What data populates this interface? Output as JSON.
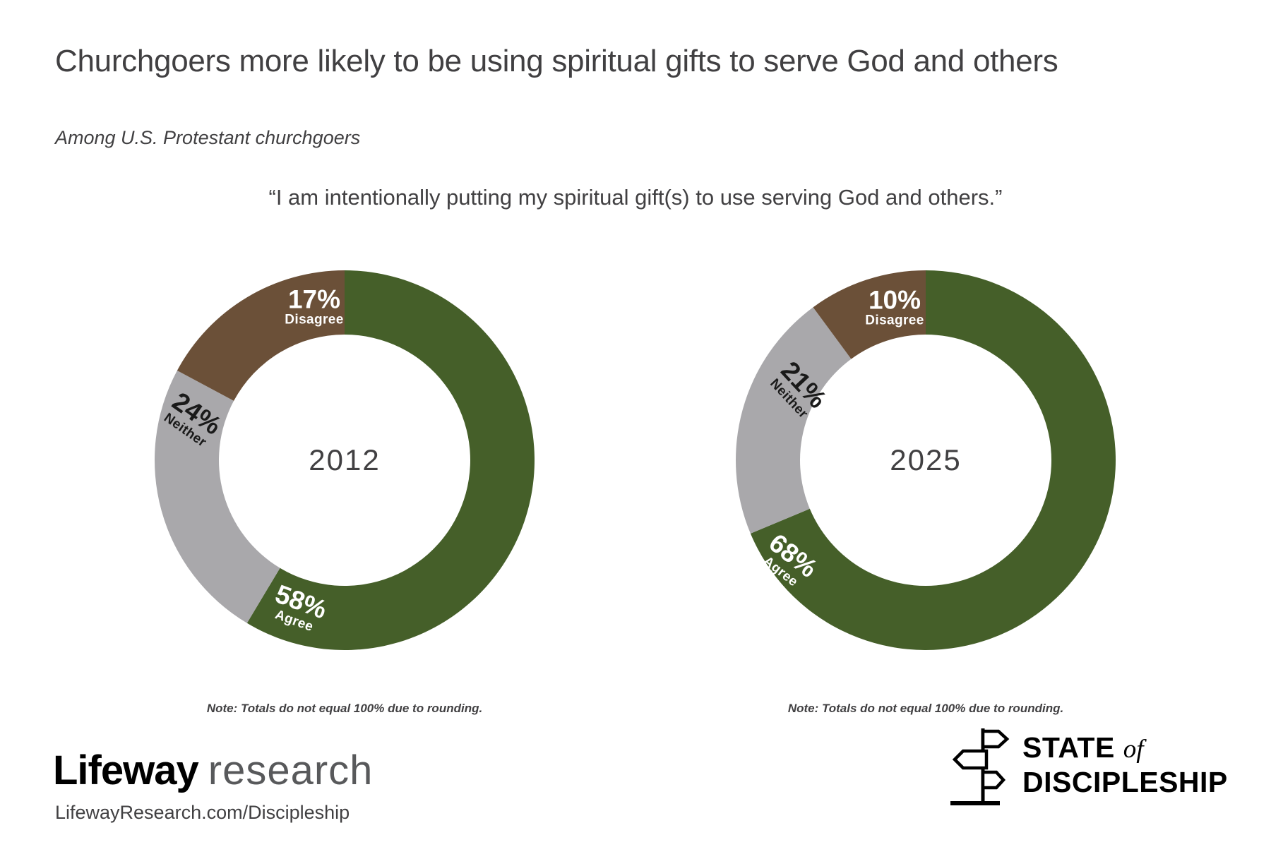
{
  "header": {
    "title": "Churchgoers more likely to be using spiritual gifts to serve God and others",
    "subtitle": "Among U.S. Protestant churchgoers",
    "quote": "“I am intentionally putting my spiritual gift(s) to use serving God and others.”"
  },
  "colors": {
    "agree": "#455F29",
    "neither": "#A9A8AB",
    "disagree": "#6B5038",
    "text": "#414042",
    "label_light": "#FFFFFF",
    "label_dark": "#1A1A1A"
  },
  "chart_data": [
    {
      "type": "pie",
      "subtype": "donut",
      "title": "2012",
      "units": "%",
      "legend_position": "on-slice",
      "categories": [
        "Agree",
        "Neither",
        "Disagree"
      ],
      "values": [
        58,
        24,
        17
      ],
      "slices": [
        {
          "label": "Agree",
          "value": 58,
          "color_key": "agree",
          "text_color_key": "label_light"
        },
        {
          "label": "Neither",
          "value": 24,
          "color_key": "neither",
          "text_color_key": "label_dark"
        },
        {
          "label": "Disagree",
          "value": 17,
          "color_key": "disagree",
          "text_color_key": "label_light"
        }
      ],
      "note": "Note: Totals do not equal 100% due to rounding."
    },
    {
      "type": "pie",
      "subtype": "donut",
      "title": "2025",
      "units": "%",
      "legend_position": "on-slice",
      "categories": [
        "Agree",
        "Neither",
        "Disagree"
      ],
      "values": [
        68,
        21,
        10
      ],
      "slices": [
        {
          "label": "Agree",
          "value": 68,
          "color_key": "agree",
          "text_color_key": "label_light"
        },
        {
          "label": "Neither",
          "value": 21,
          "color_key": "neither",
          "text_color_key": "label_dark"
        },
        {
          "label": "Disagree",
          "value": 10,
          "color_key": "disagree",
          "text_color_key": "label_light"
        }
      ],
      "note": "Note: Totals do not equal 100% due to rounding."
    }
  ],
  "footer": {
    "brand_bold": "Lifeway",
    "brand_light": "research",
    "url": "LifewayResearch.com/Discipleship",
    "logo_line1": "STATE",
    "logo_of": "of",
    "logo_line2": "DISCIPLESHIP"
  }
}
